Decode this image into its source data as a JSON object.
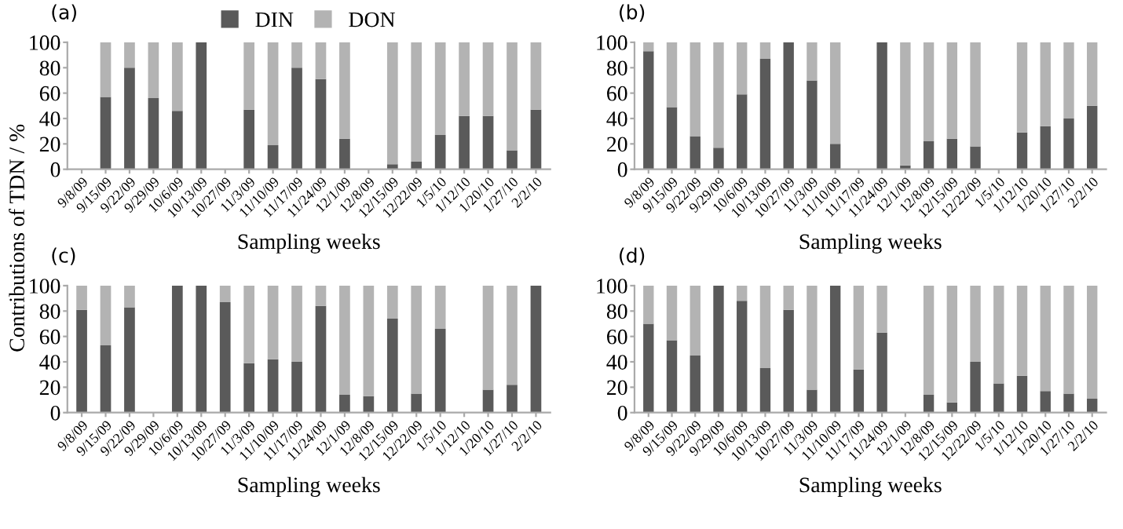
{
  "chart_data": [
    {
      "type": "bar",
      "title": "(a)",
      "xlabel": "Sampling weeks",
      "ylabel": "Contributions of TDN / %",
      "stacked": true,
      "legend": "top",
      "grid": false,
      "ylim": [
        0,
        100
      ],
      "yticks": [
        0,
        20,
        40,
        60,
        80,
        100
      ],
      "categories": [
        "9/8/09",
        "9/15/09",
        "9/22/09",
        "9/29/09",
        "10/6/09",
        "10/13/09",
        "10/27/09",
        "11/3/09",
        "11/10/09",
        "11/17/09",
        "11/24/09",
        "12/1/09",
        "12/8/09",
        "12/15/09",
        "12/22/09",
        "1/5/10",
        "1/12/10",
        "1/20/10",
        "1/27/10",
        "2/2/10"
      ],
      "series": [
        {
          "name": "DIN",
          "color": "#5a5a5a",
          "values": [
            null,
            57,
            80,
            56,
            46,
            100,
            null,
            47,
            19,
            80,
            71,
            24,
            null,
            4,
            6,
            27,
            42,
            42,
            15,
            47
          ]
        },
        {
          "name": "DON",
          "color": "#b3b3b3",
          "values": [
            null,
            43,
            20,
            44,
            54,
            0,
            null,
            53,
            81,
            20,
            29,
            76,
            null,
            96,
            94,
            73,
            58,
            58,
            85,
            53
          ]
        }
      ]
    },
    {
      "type": "bar",
      "title": "(b)",
      "xlabel": "Sampling weeks",
      "stacked": true,
      "grid": false,
      "ylim": [
        0,
        100
      ],
      "yticks": [
        0,
        20,
        40,
        60,
        80,
        100
      ],
      "categories": [
        "9/8/09",
        "9/15/09",
        "9/22/09",
        "9/29/09",
        "10/6/09",
        "10/13/09",
        "10/27/09",
        "11/3/09",
        "11/10/09",
        "11/17/09",
        "11/24/09",
        "12/1/09",
        "12/8/09",
        "12/15/09",
        "12/22/09",
        "1/5/10",
        "1/12/10",
        "1/20/10",
        "1/27/10",
        "2/2/10"
      ],
      "series": [
        {
          "color": "#5a5a5a",
          "values": [
            93,
            49,
            26,
            17,
            59,
            87,
            100,
            70,
            20,
            null,
            100,
            3,
            22,
            24,
            18,
            null,
            29,
            34,
            40,
            50
          ]
        },
        {
          "color": "#b3b3b3",
          "values": [
            7,
            51,
            74,
            83,
            41,
            13,
            0,
            30,
            80,
            null,
            0,
            97,
            78,
            76,
            82,
            null,
            71,
            66,
            60,
            50
          ]
        }
      ]
    },
    {
      "type": "bar",
      "title": "(c)",
      "xlabel": "Sampling weeks",
      "stacked": true,
      "grid": false,
      "ylim": [
        0,
        100
      ],
      "yticks": [
        0,
        20,
        40,
        60,
        80,
        100
      ],
      "categories": [
        "9/8/09",
        "9/15/09",
        "9/22/09",
        "9/29/09",
        "10/6/09",
        "10/13/09",
        "10/27/09",
        "11/3/09",
        "11/10/09",
        "11/17/09",
        "11/24/09",
        "12/1/09",
        "12/8/09",
        "12/15/09",
        "12/22/09",
        "1/5/10",
        "1/12/10",
        "1/20/10",
        "1/27/10",
        "2/2/10"
      ],
      "series": [
        {
          "color": "#5a5a5a",
          "values": [
            81,
            53,
            83,
            null,
            100,
            100,
            87,
            39,
            42,
            40,
            84,
            14,
            13,
            74,
            15,
            66,
            null,
            18,
            22,
            100
          ]
        },
        {
          "color": "#b3b3b3",
          "values": [
            19,
            47,
            17,
            null,
            0,
            0,
            13,
            61,
            58,
            60,
            16,
            86,
            87,
            26,
            85,
            34,
            null,
            82,
            78,
            0
          ]
        }
      ]
    },
    {
      "type": "bar",
      "title": "(d)",
      "xlabel": "Sampling weeks",
      "stacked": true,
      "grid": false,
      "ylim": [
        0,
        100
      ],
      "yticks": [
        0,
        20,
        40,
        60,
        80,
        100
      ],
      "categories": [
        "9/8/09",
        "9/15/09",
        "9/22/09",
        "9/29/09",
        "10/6/09",
        "10/13/09",
        "10/27/09",
        "11/3/09",
        "11/10/09",
        "11/17/09",
        "11/24/09",
        "12/1/09",
        "12/8/09",
        "12/15/09",
        "12/22/09",
        "1/5/10",
        "1/12/10",
        "1/20/10",
        "1/27/10",
        "2/2/10"
      ],
      "series": [
        {
          "color": "#5a5a5a",
          "values": [
            70,
            57,
            45,
            100,
            88,
            35,
            81,
            18,
            100,
            34,
            63,
            null,
            14,
            8,
            40,
            23,
            29,
            17,
            15,
            11
          ]
        },
        {
          "color": "#b3b3b3",
          "values": [
            30,
            43,
            55,
            0,
            12,
            65,
            19,
            82,
            0,
            66,
            37,
            null,
            86,
            92,
            60,
            77,
            71,
            83,
            85,
            89
          ]
        }
      ]
    }
  ]
}
